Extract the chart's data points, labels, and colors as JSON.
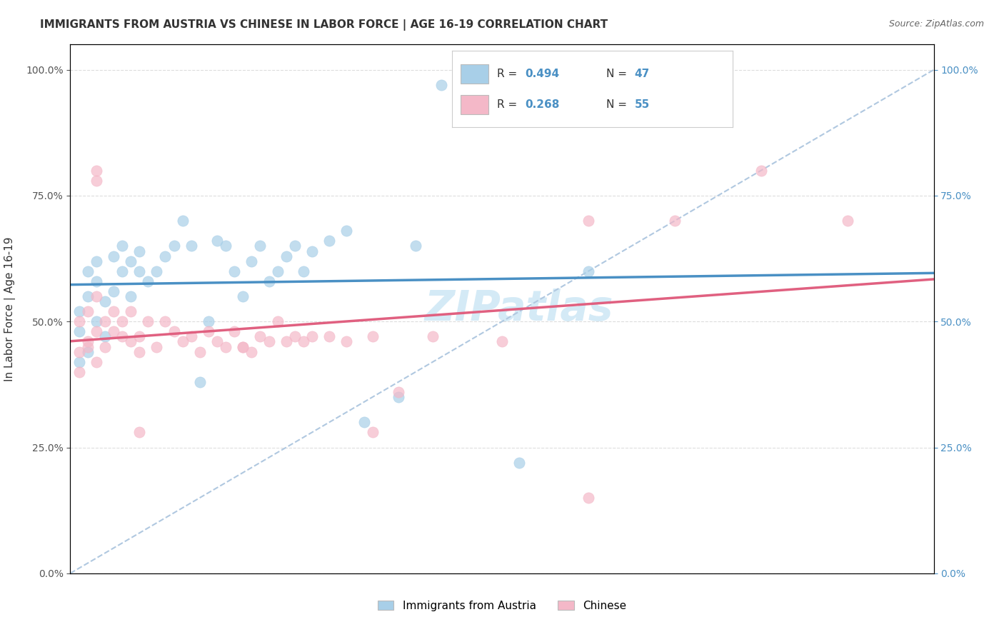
{
  "title": "IMMIGRANTS FROM AUSTRIA VS CHINESE IN LABOR FORCE | AGE 16-19 CORRELATION CHART",
  "source": "Source: ZipAtlas.com",
  "ylabel_label": "In Labor Force | Age 16-19",
  "legend_austria": "Immigrants from Austria",
  "legend_chinese": "Chinese",
  "austria_R": 0.494,
  "austria_N": 47,
  "chinese_R": 0.268,
  "chinese_N": 55,
  "austria_color": "#a8cfe8",
  "chinese_color": "#f4b8c8",
  "austria_line_color": "#4a90c4",
  "chinese_line_color": "#e06080",
  "diagonal_color": "#b0c8e0",
  "watermark_text": "ZIPatlas",
  "watermark_color": "#d0e8f5",
  "xmin": 0.0,
  "xmax": 0.1,
  "ymin": 0.0,
  "ymax": 1.05,
  "austria_x": [
    0.001,
    0.001,
    0.001,
    0.002,
    0.002,
    0.002,
    0.003,
    0.003,
    0.003,
    0.004,
    0.004,
    0.005,
    0.005,
    0.006,
    0.006,
    0.007,
    0.007,
    0.008,
    0.008,
    0.009,
    0.01,
    0.011,
    0.012,
    0.013,
    0.014,
    0.015,
    0.016,
    0.017,
    0.018,
    0.019,
    0.02,
    0.021,
    0.022,
    0.023,
    0.024,
    0.025,
    0.026,
    0.027,
    0.028,
    0.03,
    0.032,
    0.034,
    0.038,
    0.04,
    0.043,
    0.052,
    0.06
  ],
  "austria_y": [
    0.42,
    0.48,
    0.52,
    0.44,
    0.55,
    0.6,
    0.5,
    0.58,
    0.62,
    0.47,
    0.54,
    0.56,
    0.63,
    0.6,
    0.65,
    0.55,
    0.62,
    0.6,
    0.64,
    0.58,
    0.6,
    0.63,
    0.65,
    0.7,
    0.65,
    0.38,
    0.5,
    0.66,
    0.65,
    0.6,
    0.55,
    0.62,
    0.65,
    0.58,
    0.6,
    0.63,
    0.65,
    0.6,
    0.64,
    0.66,
    0.68,
    0.3,
    0.35,
    0.65,
    0.97,
    0.22,
    0.6
  ],
  "chinese_x": [
    0.001,
    0.001,
    0.001,
    0.002,
    0.002,
    0.002,
    0.003,
    0.003,
    0.003,
    0.004,
    0.004,
    0.005,
    0.005,
    0.006,
    0.006,
    0.007,
    0.007,
    0.008,
    0.008,
    0.009,
    0.01,
    0.011,
    0.012,
    0.013,
    0.014,
    0.015,
    0.016,
    0.017,
    0.018,
    0.019,
    0.02,
    0.021,
    0.022,
    0.023,
    0.024,
    0.025,
    0.026,
    0.027,
    0.028,
    0.03,
    0.032,
    0.035,
    0.038,
    0.042,
    0.05,
    0.06,
    0.07,
    0.08,
    0.09,
    0.003,
    0.003,
    0.008,
    0.02,
    0.035,
    0.06
  ],
  "chinese_y": [
    0.44,
    0.5,
    0.4,
    0.45,
    0.52,
    0.46,
    0.48,
    0.55,
    0.42,
    0.5,
    0.45,
    0.48,
    0.52,
    0.47,
    0.5,
    0.46,
    0.52,
    0.44,
    0.47,
    0.5,
    0.45,
    0.5,
    0.48,
    0.46,
    0.47,
    0.44,
    0.48,
    0.46,
    0.45,
    0.48,
    0.45,
    0.44,
    0.47,
    0.46,
    0.5,
    0.46,
    0.47,
    0.46,
    0.47,
    0.47,
    0.46,
    0.47,
    0.36,
    0.47,
    0.46,
    0.7,
    0.7,
    0.8,
    0.7,
    0.8,
    0.78,
    0.28,
    0.45,
    0.28,
    0.15
  ]
}
